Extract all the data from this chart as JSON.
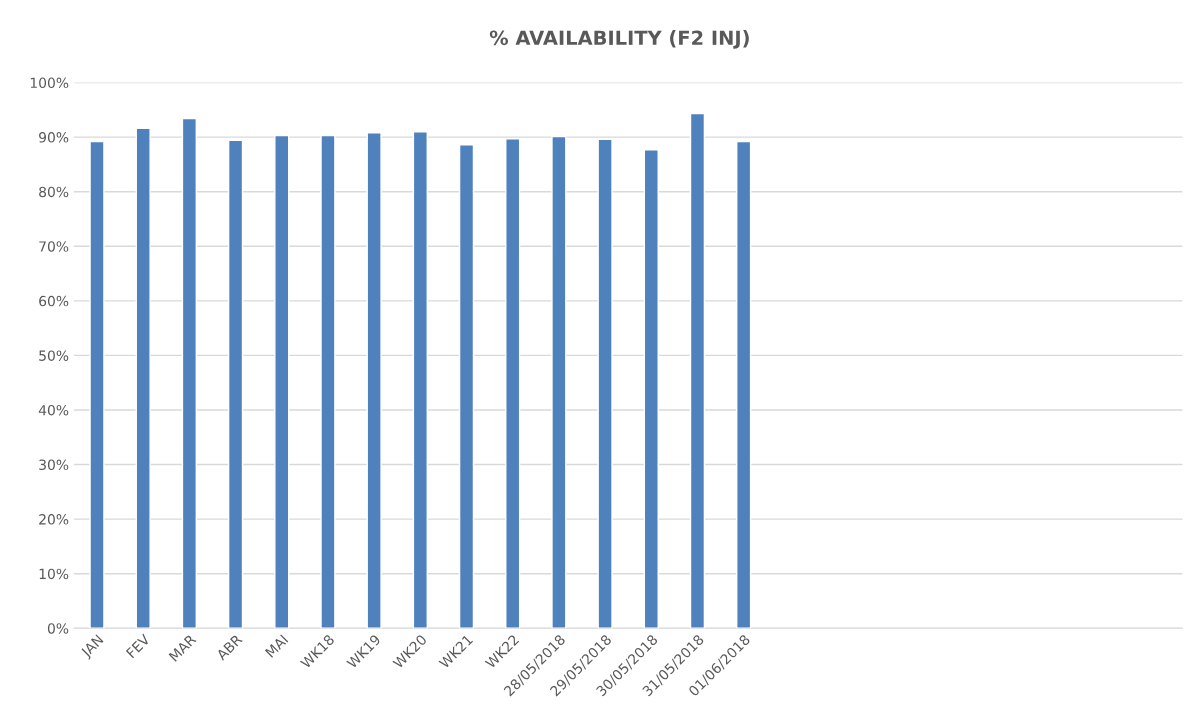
{
  "chart_data": {
    "type": "bar",
    "title": "% AVAILABILITY (F2 INJ)",
    "categories": [
      "JAN",
      "FEV",
      "MAR",
      "ABR",
      "MAI",
      "WK18",
      "WK19",
      "WK20",
      "WK21",
      "WK22",
      "28/05/2018",
      "29/05/2018",
      "30/05/2018",
      "31/05/2018",
      "01/06/2018",
      null,
      null,
      null,
      null,
      null,
      null,
      null,
      null,
      null
    ],
    "values": [
      89.2,
      91.6,
      93.4,
      89.4,
      90.3,
      90.3,
      90.8,
      91.0,
      88.6,
      89.7,
      90.1,
      89.6,
      87.7,
      94.3,
      89.2,
      null,
      null,
      null,
      null,
      null,
      null,
      null,
      null,
      null
    ],
    "color": "#4f81bd",
    "ylim": [
      0,
      100
    ],
    "yticks": [
      {
        "value": 0,
        "label": "0%"
      },
      {
        "value": 10,
        "label": "10%"
      },
      {
        "value": 20,
        "label": "20%"
      },
      {
        "value": 30,
        "label": "30%"
      },
      {
        "value": 40,
        "label": "40%"
      },
      {
        "value": 50,
        "label": "50%"
      },
      {
        "value": 60,
        "label": "60%"
      },
      {
        "value": 70,
        "label": "70%"
      },
      {
        "value": 80,
        "label": "80%"
      },
      {
        "value": 90,
        "label": "90%"
      },
      {
        "value": 100,
        "label": "100%"
      }
    ],
    "grid": "y"
  }
}
